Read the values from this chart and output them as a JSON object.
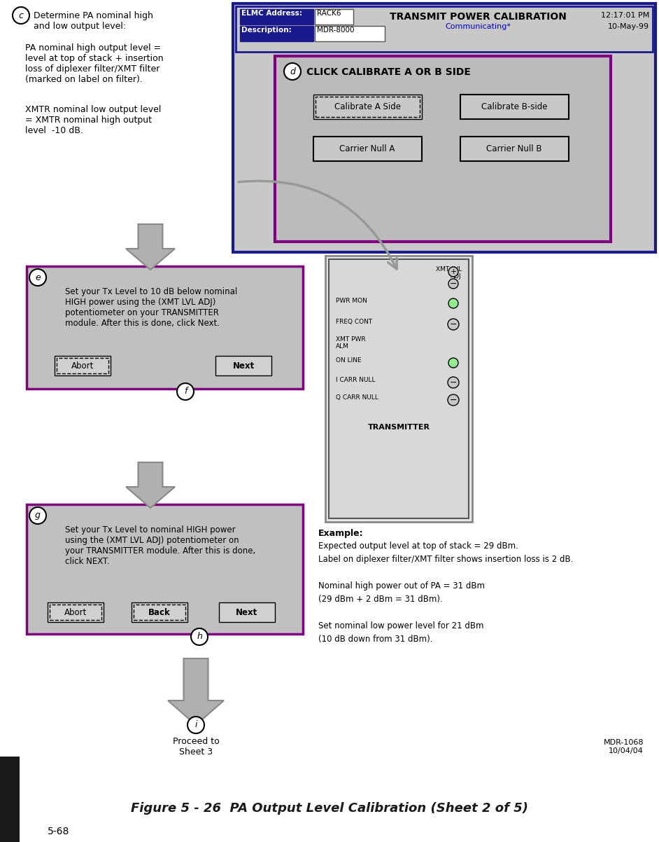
{
  "title": "Figure 5 - 26  PA Output Level Calibration (Sheet 2 of 5)",
  "page_num": "5-68",
  "bg_color": "#ffffff",
  "header_bg": "#c0c0c0",
  "header_border": "#1a1a8c",
  "purple_border": "#800080",
  "elmc_label": "ELMC Address:",
  "elmc_value": "RACK6",
  "desc_label": "Description:",
  "desc_value": "MDR-8000",
  "screen_title": "TRANSMIT POWER CALIBRATION",
  "communicating": "Communicating*",
  "time": "12:17:01 PM",
  "date": "10-May-99",
  "step_d_text": "CLICK CALIBRATE A OR B SIDE",
  "btn_calibrate_a": "Calibrate A Side",
  "btn_calibrate_b": "Calibrate B-side",
  "btn_carrier_a": "Carrier Null A",
  "btn_carrier_b": "Carrier Null B",
  "step_c_text1": "Determine PA nominal high\nand low output level:",
  "step_c_text2": "PA nominal high output level =\nlevel at top of stack + insertion\nloss of diplexer filter/XMT filter\n(marked on label on filter).",
  "step_c_text3": "XMTR nominal low output level\n= XMTR nominal high output\nlevel  -10 dB.",
  "step_e_text": "Set your Tx Level to 10 dB below nominal\nHIGH power using the (XMT LVL ADJ)\npotentiometer on your TRANSMITTER\nmodule. After this is done, click Next.",
  "btn_abort_e": "Abort",
  "btn_next_e": "Next",
  "step_g_text": "Set your Tx Level to nominal HIGH power\nusing the (XMT LVL ADJ) potentiometer on\nyour TRANSMITTER module. After this is done,\nclick NEXT.",
  "btn_abort_g": "Abort",
  "btn_back_g": "Back",
  "btn_next_g": "Next",
  "step_i_text": "Proceed to\nSheet 3",
  "example_title": "Example:",
  "example_text": "Expected output level at top of stack = 29 dBm.\nLabel on diplexer filter/XMT filter shows insertion loss is 2 dB.\n\nNominal high power out of PA = 31 dBm\n(29 dBm + 2 dBm = 31 dBm).\n\nSet nominal low power level for 21 dBm\n(10 dB down from 31 dBm).",
  "mdr_ref": "MDR-1068\n10/04/04",
  "arrow_color": "#b0b0b0",
  "panel_bg": "#c0c0c0",
  "screen_bg": "#c8c8c8",
  "calib_bg": "#bbbbbb"
}
